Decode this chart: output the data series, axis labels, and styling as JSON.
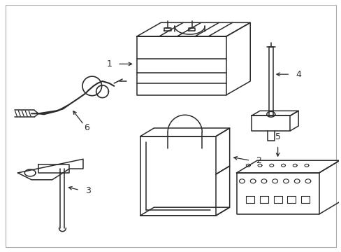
{
  "background_color": "#ffffff",
  "line_color": "#2a2a2a",
  "line_width": 1.1,
  "fig_width": 4.89,
  "fig_height": 3.6,
  "dpi": 100
}
